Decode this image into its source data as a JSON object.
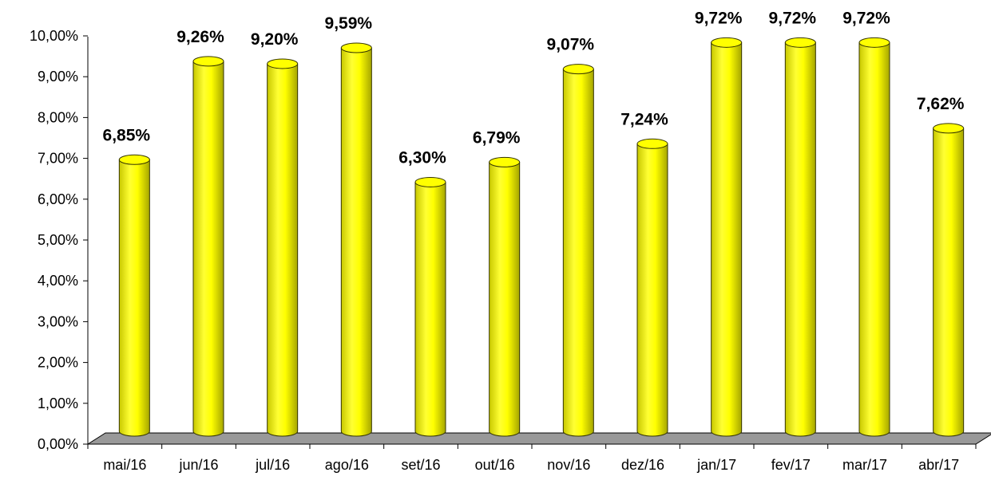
{
  "chart_data": {
    "type": "bar",
    "style": "3d-cylinder",
    "categories": [
      "mai/16",
      "jun/16",
      "jul/16",
      "ago/16",
      "set/16",
      "out/16",
      "nov/16",
      "dez/16",
      "jan/17",
      "fev/17",
      "mar/17",
      "abr/17"
    ],
    "values": [
      6.85,
      9.26,
      9.2,
      9.59,
      6.3,
      6.79,
      9.07,
      7.24,
      9.72,
      9.72,
      9.72,
      7.62
    ],
    "data_labels": [
      "6,85%",
      "9,26%",
      "9,20%",
      "9,59%",
      "6,30%",
      "6,79%",
      "9,07%",
      "7,24%",
      "9,72%",
      "9,72%",
      "9,72%",
      "7,62%"
    ],
    "y_ticks": [
      0,
      1,
      2,
      3,
      4,
      5,
      6,
      7,
      8,
      9,
      10
    ],
    "y_tick_labels": [
      "0,00%",
      "1,00%",
      "2,00%",
      "3,00%",
      "4,00%",
      "5,00%",
      "6,00%",
      "7,00%",
      "8,00%",
      "9,00%",
      "10,00%"
    ],
    "ylim": [
      0,
      10
    ],
    "grid": false,
    "legend": "none",
    "title": "",
    "xlabel": "",
    "ylabel": "",
    "colors": {
      "bar_fill": "#ffff00",
      "bar_shade": "#b8b800",
      "bar_outline": "#333300",
      "floor": "#999999",
      "axis": "#000000"
    }
  }
}
